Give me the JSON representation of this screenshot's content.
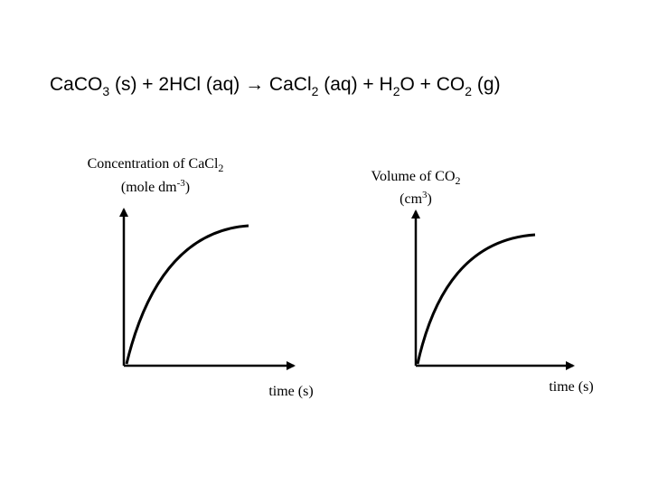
{
  "equation": [
    {
      "text": "CaCO"
    },
    {
      "sub": "3"
    },
    {
      "text": " (s) + 2HCl (aq) → CaCl"
    },
    {
      "sub": "2"
    },
    {
      "text": " (aq) + H"
    },
    {
      "sub": "2"
    },
    {
      "text": "O + CO"
    },
    {
      "sub": "2"
    },
    {
      "text": " (g)"
    }
  ],
  "graphs": [
    {
      "y_label": {
        "line1": "Concentration of CaCl",
        "line1_sub": "2",
        "line2": "(mole dm",
        "line2_sup": "-3",
        "line2_end": ")"
      },
      "x_label": "time (s)"
    },
    {
      "y_label": {
        "line1": "Volume of CO",
        "line1_sub": "2",
        "line2": "(cm",
        "line2_sup": "3",
        "line2_end": ")"
      },
      "x_label": "time (s)"
    }
  ]
}
